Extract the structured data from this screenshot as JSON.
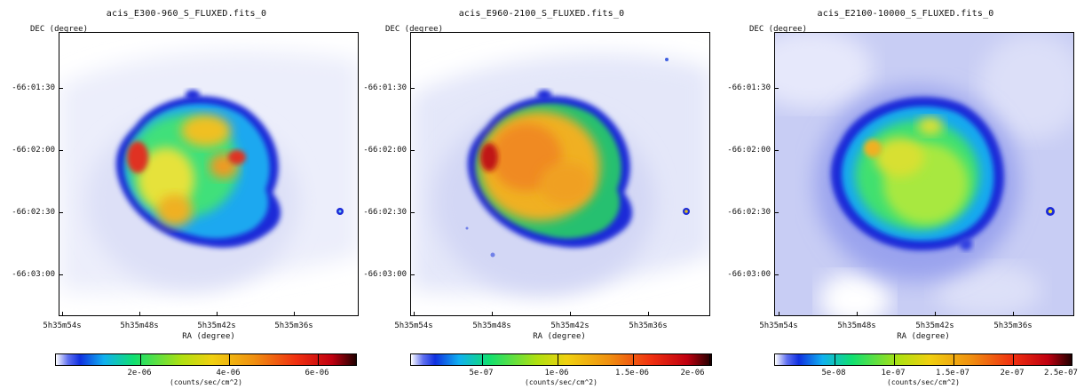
{
  "panels": [
    {
      "title": "acis_E300-960_S_FLUXED.fits_0",
      "dec_label": "DEC (degree)",
      "ra_label": "RA (degree)",
      "y_ticks": [
        "-66:01:30",
        "-66:02:00",
        "-66:02:30",
        "-66:03:00"
      ],
      "x_ticks": [
        "5h35m54s",
        "5h35m48s",
        "5h35m42s",
        "5h35m36s"
      ],
      "colorbar_ticks": [
        "2e-06",
        "4e-06",
        "6e-06"
      ],
      "colorbar_unit": "(counts/sec/cm^2)"
    },
    {
      "title": "acis_E960-2100_S_FLUXED.fits_0",
      "dec_label": "DEC (degree)",
      "ra_label": "RA (degree)",
      "y_ticks": [
        "-66:01:30",
        "-66:02:00",
        "-66:02:30",
        "-66:03:00"
      ],
      "x_ticks": [
        "5h35m54s",
        "5h35m48s",
        "5h35m42s",
        "5h35m36s"
      ],
      "colorbar_ticks": [
        "5e-07",
        "1e-06",
        "1.5e-06",
        "2e-06"
      ],
      "colorbar_unit": "(counts/sec/cm^2)"
    },
    {
      "title": "acis_E2100-10000_S_FLUXED.fits_0",
      "dec_label": "DEC (degree)",
      "ra_label": "RA (degree)",
      "y_ticks": [
        "-66:01:30",
        "-66:02:00",
        "-66:02:30",
        "-66:03:00"
      ],
      "x_ticks": [
        "5h35m54s",
        "5h35m48s",
        "5h35m42s",
        "5h35m36s"
      ],
      "colorbar_ticks": [
        "5e-08",
        "1e-07",
        "1.5e-07",
        "2e-07",
        "2.5e-07"
      ],
      "colorbar_unit": "(counts/sec/cm^2)"
    }
  ]
}
